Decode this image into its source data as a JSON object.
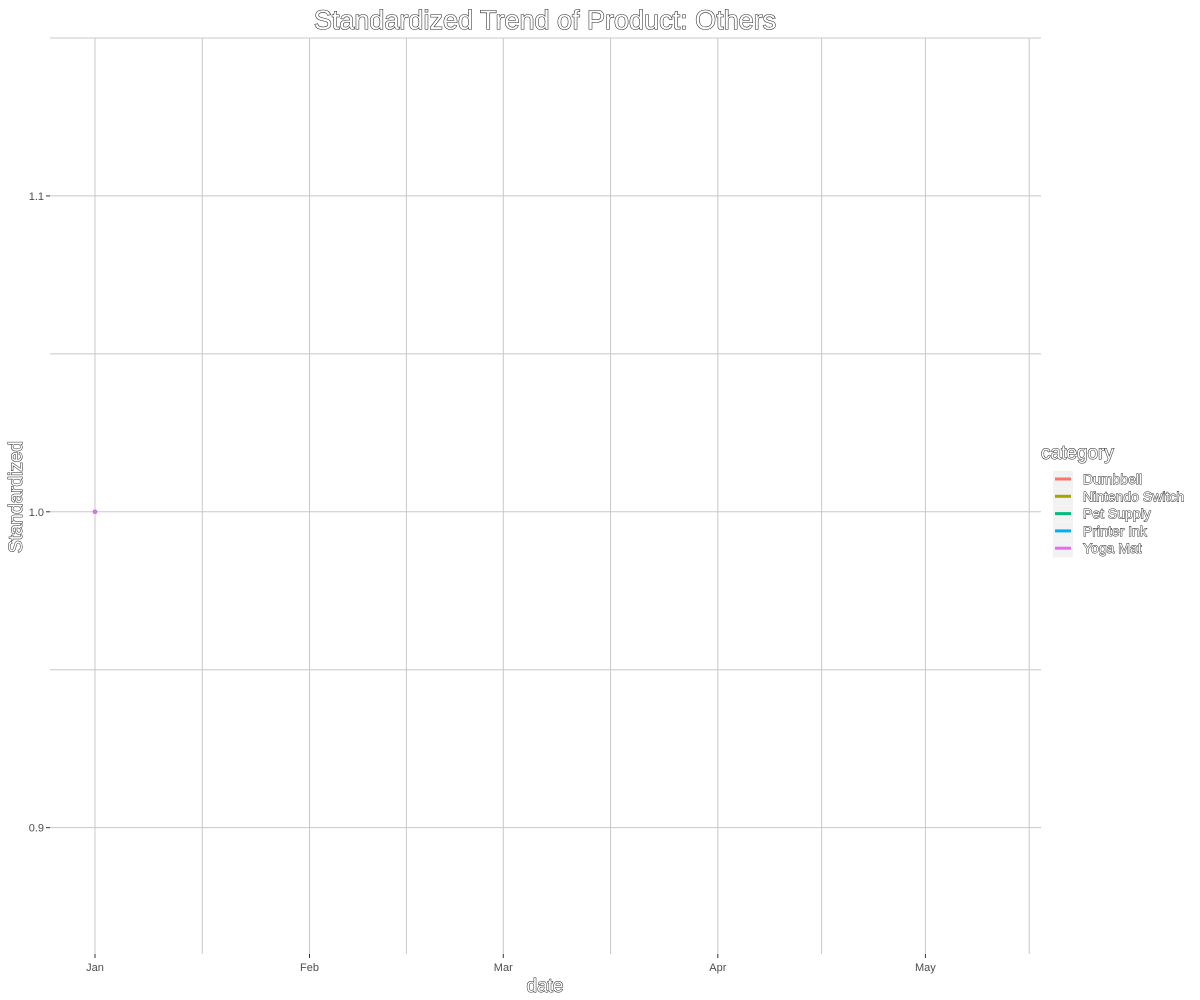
{
  "chart_data": {
    "type": "line",
    "title": "Standardized Trend of Product: Others",
    "xlabel": "date",
    "ylabel": "Standardized",
    "x_ticks": [
      "Jan",
      "Feb",
      "Mar",
      "Apr",
      "May"
    ],
    "y_ticks": [
      "0.9",
      "1.0",
      "1.1"
    ],
    "ylim": [
      0.86,
      1.15
    ],
    "grid": true,
    "legend": {
      "title": "category",
      "position": "right",
      "entries": [
        {
          "name": "Dumbbell",
          "color": "#F8766D"
        },
        {
          "name": "Nintendo Switch",
          "color": "#A3A500"
        },
        {
          "name": "Pet Supply",
          "color": "#00BF7D"
        },
        {
          "name": "Printer Ink",
          "color": "#00B0F6"
        },
        {
          "name": "Yoga Mat",
          "color": "#E76BF3"
        }
      ]
    },
    "series": [
      {
        "name": "Dumbbell",
        "color": "#F8766D",
        "points": [
          {
            "x": "Jan",
            "y": 1.0
          }
        ]
      },
      {
        "name": "Nintendo Switch",
        "color": "#A3A500",
        "points": [
          {
            "x": "Jan",
            "y": 1.0
          }
        ]
      },
      {
        "name": "Pet Supply",
        "color": "#00BF7D",
        "points": [
          {
            "x": "Jan",
            "y": 1.0
          }
        ]
      },
      {
        "name": "Printer Ink",
        "color": "#00B0F6",
        "points": [
          {
            "x": "Jan",
            "y": 1.0
          }
        ]
      },
      {
        "name": "Yoga Mat",
        "color": "#E76BF3",
        "points": [
          {
            "x": "Jan",
            "y": 1.0
          }
        ]
      }
    ]
  }
}
